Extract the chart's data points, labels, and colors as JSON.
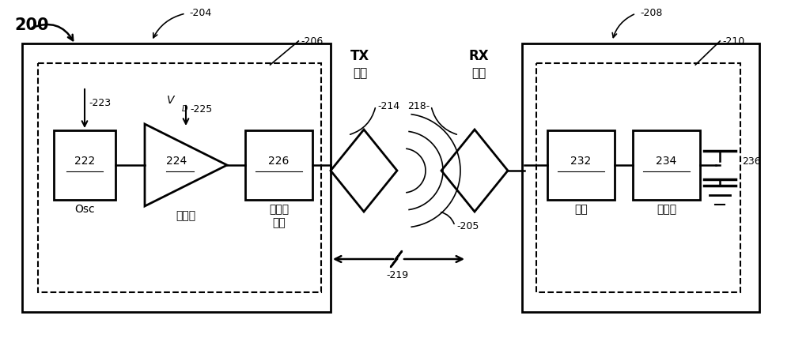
{
  "bg_color": "#ffffff",
  "fig_width": 10.0,
  "fig_height": 4.33,
  "label_200": "200",
  "label_204": "204",
  "label_206": "206",
  "label_208": "208",
  "label_210": "210",
  "label_222": "222",
  "label_224": "224",
  "label_226": "226",
  "label_232": "232",
  "label_234": "234",
  "label_214": "214",
  "label_218": "218",
  "label_205": "205",
  "label_219": "219",
  "label_223": "223",
  "label_225": "225",
  "label_236": "236",
  "text_Osc": "Osc",
  "text_driver": "驱驶员",
  "text_filter": "滤波，\n匹配",
  "text_match": "匹配",
  "text_rectifier": "整流器",
  "text_TX_line1": "TX",
  "text_TX_line2": "线圈",
  "text_RX_line1": "RX",
  "text_RX_line2": "线圈",
  "text_VD": "V",
  "text_D_sub": "D"
}
